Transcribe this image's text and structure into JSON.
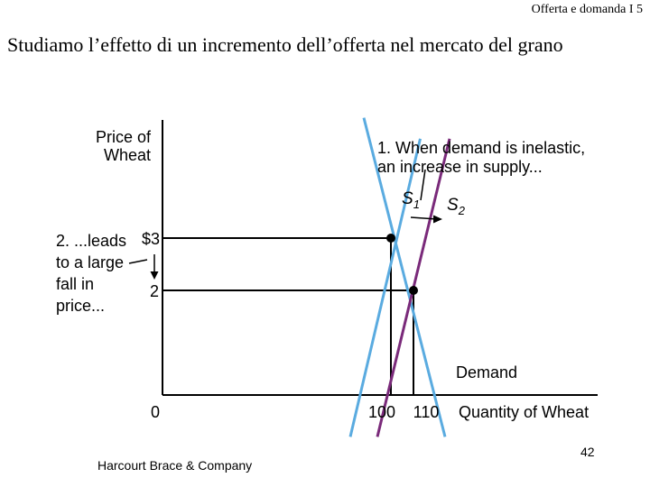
{
  "slide": {
    "header": "Offerta e domanda I 5",
    "title": "Studiamo l’effetto di un incremento dell’offerta nel mercato del grano",
    "footer": "Harcourt Brace & Company",
    "page_number": "42"
  },
  "chart_data": {
    "type": "line",
    "ylabel_line1": "Price of",
    "ylabel_line2": "Wheat",
    "xlabel": "Quantity of Wheat",
    "origin_label": "0",
    "price_ticks": [
      {
        "value": 3,
        "label": "$3"
      },
      {
        "value": 2,
        "label": "2"
      }
    ],
    "quantity_ticks": [
      {
        "value": 100,
        "label": "100"
      },
      {
        "value": 110,
        "label": "110"
      }
    ],
    "series": [
      {
        "name": "Demand",
        "color": "#5aabe0",
        "points": [
          [
            88,
            5.3
          ],
          [
            124,
            -0.8
          ]
        ]
      },
      {
        "name": "S1",
        "name_main": "S",
        "name_sub": "1",
        "color": "#5aabe0",
        "points": [
          [
            82,
            -0.8
          ],
          [
            113,
            4.9
          ]
        ]
      },
      {
        "name": "S2",
        "name_main": "S",
        "name_sub": "2",
        "color": "#7a2a7a",
        "points": [
          [
            94,
            -0.8
          ],
          [
            126,
            4.9
          ]
        ]
      }
    ],
    "equilibria": [
      {
        "x": 100,
        "y": 3
      },
      {
        "x": 110,
        "y": 2
      }
    ],
    "annotations": {
      "supply_note_line1": "1. When demand is inelastic,",
      "supply_note_line2": "an increase in supply...",
      "price_note_lines": [
        "2. ...leads",
        "to a large",
        "fall in",
        "price..."
      ]
    }
  }
}
